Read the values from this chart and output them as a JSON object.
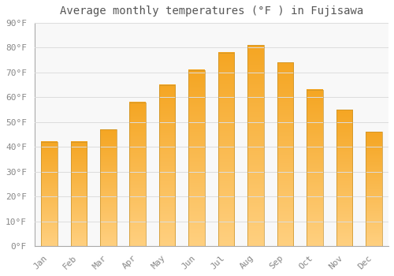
{
  "title": "Average monthly temperatures (°F ) in Fujisawa",
  "months": [
    "Jan",
    "Feb",
    "Mar",
    "Apr",
    "May",
    "Jun",
    "Jul",
    "Aug",
    "Sep",
    "Oct",
    "Nov",
    "Dec"
  ],
  "values": [
    42,
    42,
    47,
    58,
    65,
    71,
    78,
    81,
    74,
    63,
    55,
    46
  ],
  "bar_color_top": "#F5A623",
  "bar_color_bottom": "#FFD080",
  "bar_edge_color": "#C8922A",
  "background_color": "#FFFFFF",
  "plot_bg_color": "#F8F8F8",
  "grid_color": "#DDDDDD",
  "ylim": [
    0,
    90
  ],
  "yticks": [
    0,
    10,
    20,
    30,
    40,
    50,
    60,
    70,
    80,
    90
  ],
  "title_fontsize": 10,
  "tick_fontsize": 8,
  "tick_color": "#888888",
  "figsize": [
    5.0,
    3.5
  ],
  "dpi": 100,
  "bar_width": 0.55
}
